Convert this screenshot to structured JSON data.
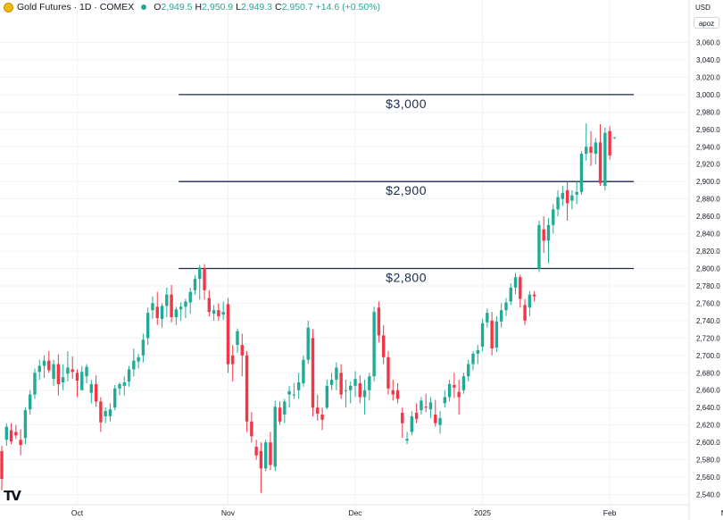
{
  "header": {
    "title": "Gold Futures · 1D · COMEX",
    "ohlc": [
      {
        "k": "O",
        "v": "2,949.5"
      },
      {
        "k": "H",
        "v": "2,950.9"
      },
      {
        "k": "L",
        "v": "2,949.3"
      },
      {
        "k": "C",
        "v": "2,950.7"
      }
    ],
    "change": "+14.6 (+0.50%)"
  },
  "price_axis": {
    "currency": "USD",
    "unit": "apoz"
  },
  "colors": {
    "up": "#22ab94",
    "down": "#f23645",
    "level_line": "#1a2b4c",
    "grid": "#f0f3fa"
  },
  "logo": "TV",
  "chart_data": {
    "type": "candlestick",
    "ylim": [
      2530,
      3080
    ],
    "ytick_step": 20,
    "x_labels": [
      {
        "label": "Oct",
        "index": 16
      },
      {
        "label": "Nov",
        "index": 48
      },
      {
        "label": "Dec",
        "index": 75
      },
      {
        "label": "2025",
        "index": 102
      },
      {
        "label": "Feb",
        "index": 129
      },
      {
        "label": "Mar",
        "index": 154
      }
    ],
    "levels": [
      {
        "price": 3000,
        "label": "$3,000",
        "from_index": 40
      },
      {
        "price": 2900,
        "label": "$2,900",
        "from_index": 40
      },
      {
        "price": 2800,
        "label": "$2,800",
        "from_index": 40
      }
    ],
    "candles": [
      [
        2590,
        2596,
        2545,
        2558
      ],
      [
        2603,
        2622,
        2596,
        2618
      ],
      [
        2614,
        2622,
        2598,
        2601
      ],
      [
        2612,
        2620,
        2604,
        2608
      ],
      [
        2603,
        2615,
        2585,
        2597
      ],
      [
        2605,
        2640,
        2598,
        2637
      ],
      [
        2638,
        2660,
        2632,
        2655
      ],
      [
        2655,
        2685,
        2650,
        2680
      ],
      [
        2681,
        2695,
        2672,
        2688
      ],
      [
        2688,
        2700,
        2674,
        2694
      ],
      [
        2694,
        2705,
        2680,
        2683
      ],
      [
        2673,
        2695,
        2665,
        2690
      ],
      [
        2690,
        2701,
        2654,
        2667
      ],
      [
        2669,
        2690,
        2660,
        2675
      ],
      [
        2679,
        2705,
        2670,
        2686
      ],
      [
        2684,
        2699,
        2673,
        2681
      ],
      [
        2680,
        2684,
        2652,
        2671
      ],
      [
        2660,
        2688,
        2660,
        2681
      ],
      [
        2676,
        2690,
        2668,
        2687
      ],
      [
        2657,
        2672,
        2645,
        2667
      ],
      [
        2667,
        2677,
        2641,
        2647
      ],
      [
        2647,
        2652,
        2612,
        2623
      ],
      [
        2630,
        2640,
        2622,
        2636
      ],
      [
        2630,
        2645,
        2624,
        2638
      ],
      [
        2640,
        2666,
        2637,
        2662
      ],
      [
        2662,
        2669,
        2654,
        2667
      ],
      [
        2665,
        2676,
        2654,
        2669
      ],
      [
        2670,
        2688,
        2664,
        2684
      ],
      [
        2684,
        2708,
        2676,
        2694
      ],
      [
        2693,
        2702,
        2685,
        2698
      ],
      [
        2700,
        2725,
        2692,
        2718
      ],
      [
        2720,
        2755,
        2712,
        2749
      ],
      [
        2752,
        2768,
        2742,
        2760
      ],
      [
        2756,
        2773,
        2735,
        2743
      ],
      [
        2742,
        2760,
        2732,
        2757
      ],
      [
        2757,
        2778,
        2744,
        2770
      ],
      [
        2770,
        2781,
        2738,
        2744
      ],
      [
        2744,
        2756,
        2735,
        2753
      ],
      [
        2753,
        2761,
        2740,
        2756
      ],
      [
        2756,
        2765,
        2743,
        2762
      ],
      [
        2761,
        2778,
        2748,
        2773
      ],
      [
        2775,
        2792,
        2770,
        2788
      ],
      [
        2788,
        2804,
        2764,
        2801
      ],
      [
        2800,
        2805,
        2764,
        2775
      ],
      [
        2766,
        2775,
        2745,
        2750
      ],
      [
        2748,
        2758,
        2740,
        2752
      ],
      [
        2752,
        2760,
        2740,
        2745
      ],
      [
        2747,
        2762,
        2741,
        2750
      ],
      [
        2759,
        2766,
        2680,
        2690
      ],
      [
        2700,
        2712,
        2670,
        2690
      ],
      [
        2712,
        2731,
        2703,
        2728
      ],
      [
        2712,
        2725,
        2676,
        2700
      ],
      [
        2700,
        2705,
        2612,
        2624
      ],
      [
        2624,
        2635,
        2600,
        2607
      ],
      [
        2595,
        2603,
        2580,
        2585
      ],
      [
        2590,
        2600,
        2542,
        2570
      ],
      [
        2570,
        2603,
        2567,
        2600
      ],
      [
        2600,
        2612,
        2568,
        2574
      ],
      [
        2572,
        2648,
        2567,
        2641
      ],
      [
        2640,
        2647,
        2620,
        2624
      ],
      [
        2632,
        2650,
        2622,
        2647
      ],
      [
        2655,
        2665,
        2640,
        2659
      ],
      [
        2655,
        2668,
        2650,
        2655
      ],
      [
        2660,
        2680,
        2650,
        2669
      ],
      [
        2668,
        2700,
        2664,
        2695
      ],
      [
        2695,
        2740,
        2690,
        2732
      ],
      [
        2720,
        2730,
        2630,
        2640
      ],
      [
        2640,
        2655,
        2625,
        2633
      ],
      [
        2632,
        2640,
        2614,
        2626
      ],
      [
        2640,
        2672,
        2638,
        2665
      ],
      [
        2666,
        2680,
        2660,
        2672
      ],
      [
        2672,
        2692,
        2660,
        2686
      ],
      [
        2680,
        2690,
        2650,
        2655
      ],
      [
        2660,
        2672,
        2640,
        2660
      ],
      [
        2660,
        2670,
        2645,
        2665
      ],
      [
        2665,
        2682,
        2652,
        2673
      ],
      [
        2668,
        2677,
        2645,
        2652
      ],
      [
        2652,
        2672,
        2632,
        2660
      ],
      [
        2660,
        2680,
        2648,
        2676
      ],
      [
        2676,
        2756,
        2670,
        2750
      ],
      [
        2755,
        2762,
        2715,
        2723
      ],
      [
        2723,
        2735,
        2690,
        2698
      ],
      [
        2698,
        2705,
        2655,
        2662
      ],
      [
        2660,
        2672,
        2648,
        2655
      ],
      [
        2660,
        2668,
        2645,
        2650
      ],
      [
        2634,
        2640,
        2605,
        2622
      ],
      [
        2602,
        2612,
        2598,
        2604
      ],
      [
        2612,
        2636,
        2608,
        2630
      ],
      [
        2634,
        2645,
        2622,
        2627
      ],
      [
        2637,
        2652,
        2632,
        2648
      ],
      [
        2641,
        2656,
        2635,
        2640
      ],
      [
        2638,
        2652,
        2628,
        2646
      ],
      [
        2632,
        2649,
        2618,
        2622
      ],
      [
        2620,
        2636,
        2610,
        2628
      ],
      [
        2645,
        2660,
        2640,
        2652
      ],
      [
        2652,
        2672,
        2647,
        2667
      ],
      [
        2666,
        2680,
        2651,
        2663
      ],
      [
        2658,
        2672,
        2632,
        2652
      ],
      [
        2660,
        2680,
        2656,
        2676
      ],
      [
        2676,
        2695,
        2670,
        2690
      ],
      [
        2690,
        2705,
        2683,
        2702
      ],
      [
        2702,
        2712,
        2690,
        2706
      ],
      [
        2710,
        2742,
        2705,
        2737
      ],
      [
        2738,
        2754,
        2732,
        2749
      ],
      [
        2740,
        2750,
        2700,
        2708
      ],
      [
        2709,
        2745,
        2704,
        2739
      ],
      [
        2739,
        2760,
        2732,
        2752
      ],
      [
        2752,
        2766,
        2745,
        2761
      ],
      [
        2762,
        2783,
        2758,
        2778
      ],
      [
        2778,
        2795,
        2770,
        2790
      ],
      [
        2790,
        2793,
        2755,
        2765
      ],
      [
        2758,
        2765,
        2735,
        2740
      ],
      [
        2755,
        2774,
        2745,
        2770
      ],
      [
        2770,
        2774,
        2762,
        2768
      ],
      [
        2800,
        2855,
        2796,
        2850
      ],
      [
        2845,
        2860,
        2818,
        2832
      ],
      [
        2832,
        2858,
        2806,
        2850
      ],
      [
        2850,
        2874,
        2840,
        2868
      ],
      [
        2868,
        2890,
        2860,
        2882
      ],
      [
        2880,
        2895,
        2872,
        2887
      ],
      [
        2890,
        2900,
        2855,
        2875
      ],
      [
        2878,
        2890,
        2868,
        2884
      ],
      [
        2885,
        2900,
        2874,
        2888
      ],
      [
        2888,
        2935,
        2885,
        2932
      ],
      [
        2932,
        2967,
        2924,
        2940
      ],
      [
        2940,
        2958,
        2918,
        2933
      ],
      [
        2932,
        2950,
        2920,
        2945
      ],
      [
        2945,
        2966,
        2895,
        2898
      ],
      [
        2895,
        2962,
        2890,
        2956
      ],
      [
        2958,
        2964,
        2925,
        2930
      ],
      [
        2950,
        2951,
        2949,
        2951
      ]
    ]
  }
}
